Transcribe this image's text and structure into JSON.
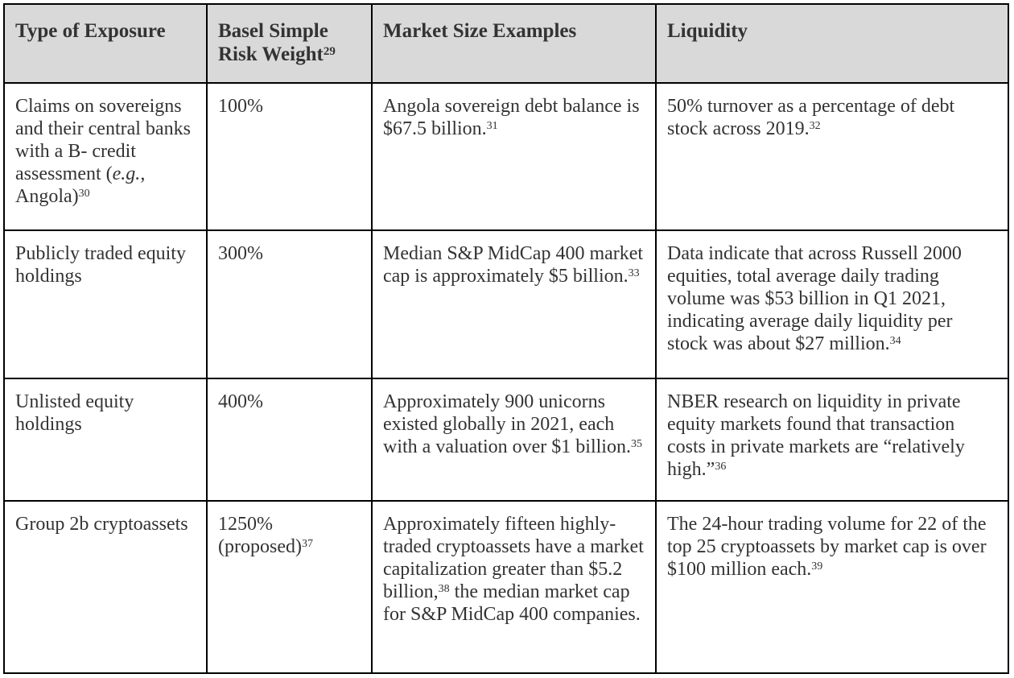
{
  "headers": [
    {
      "text": "Type of Exposure",
      "sup": ""
    },
    {
      "text": "Basel Simple Risk Weight",
      "sup": "29"
    },
    {
      "text": "Market Size Examples",
      "sup": ""
    },
    {
      "text": "Liquidity",
      "sup": ""
    }
  ],
  "rows": [
    {
      "exposure": {
        "text": "Claims on sovereigns and their central banks with a B- credit assessment (",
        "italic": "e.g.",
        "after": ", Angola)",
        "sup": "30"
      },
      "weight": {
        "text": "100%",
        "sup": ""
      },
      "market": {
        "text": "Angola sovereign debt balance is $67.5 billion.",
        "sup": "31"
      },
      "liquidity": {
        "text": "50% turnover as a percentage of debt stock across 2019.",
        "sup": "32"
      }
    },
    {
      "exposure": {
        "text": "Publicly traded equity holdings",
        "sup": ""
      },
      "weight": {
        "text": "300%",
        "sup": ""
      },
      "market": {
        "text": "Median S&P MidCap 400 market cap is approximately $5 billion.",
        "sup": "33"
      },
      "liquidity": {
        "text": "Data indicate that across Russell 2000 equities, total average daily trading volume was $53 billion in Q1 2021, indicating average daily liquidity per stock was about $27 million.",
        "sup": "34"
      }
    },
    {
      "exposure": {
        "text": "Unlisted equity holdings",
        "sup": ""
      },
      "weight": {
        "text": "400%",
        "sup": ""
      },
      "market": {
        "text": "Approximately 900 unicorns existed globally in 2021, each with a valuation over $1 billion.",
        "sup": "35"
      },
      "liquidity": {
        "text": "NBER research on liquidity in private equity markets found that transaction costs in private markets are “relatively high.”",
        "sup": "36"
      }
    },
    {
      "exposure": {
        "text": "Group 2b cryptoassets",
        "sup": ""
      },
      "weight": {
        "text": "1250% (proposed)",
        "sup": "37"
      },
      "market": {
        "text": "Approximately fifteen highly-traded cryptoassets have a market capitalization greater than $5.2 billion,",
        "sup": "38",
        "after": " the median market cap for S&P MidCap 400 companies."
      },
      "liquidity": {
        "text": "The 24-hour trading volume for 22 of the top 25 cryptoassets by market cap is over $100 million each.",
        "sup": "39"
      }
    }
  ]
}
